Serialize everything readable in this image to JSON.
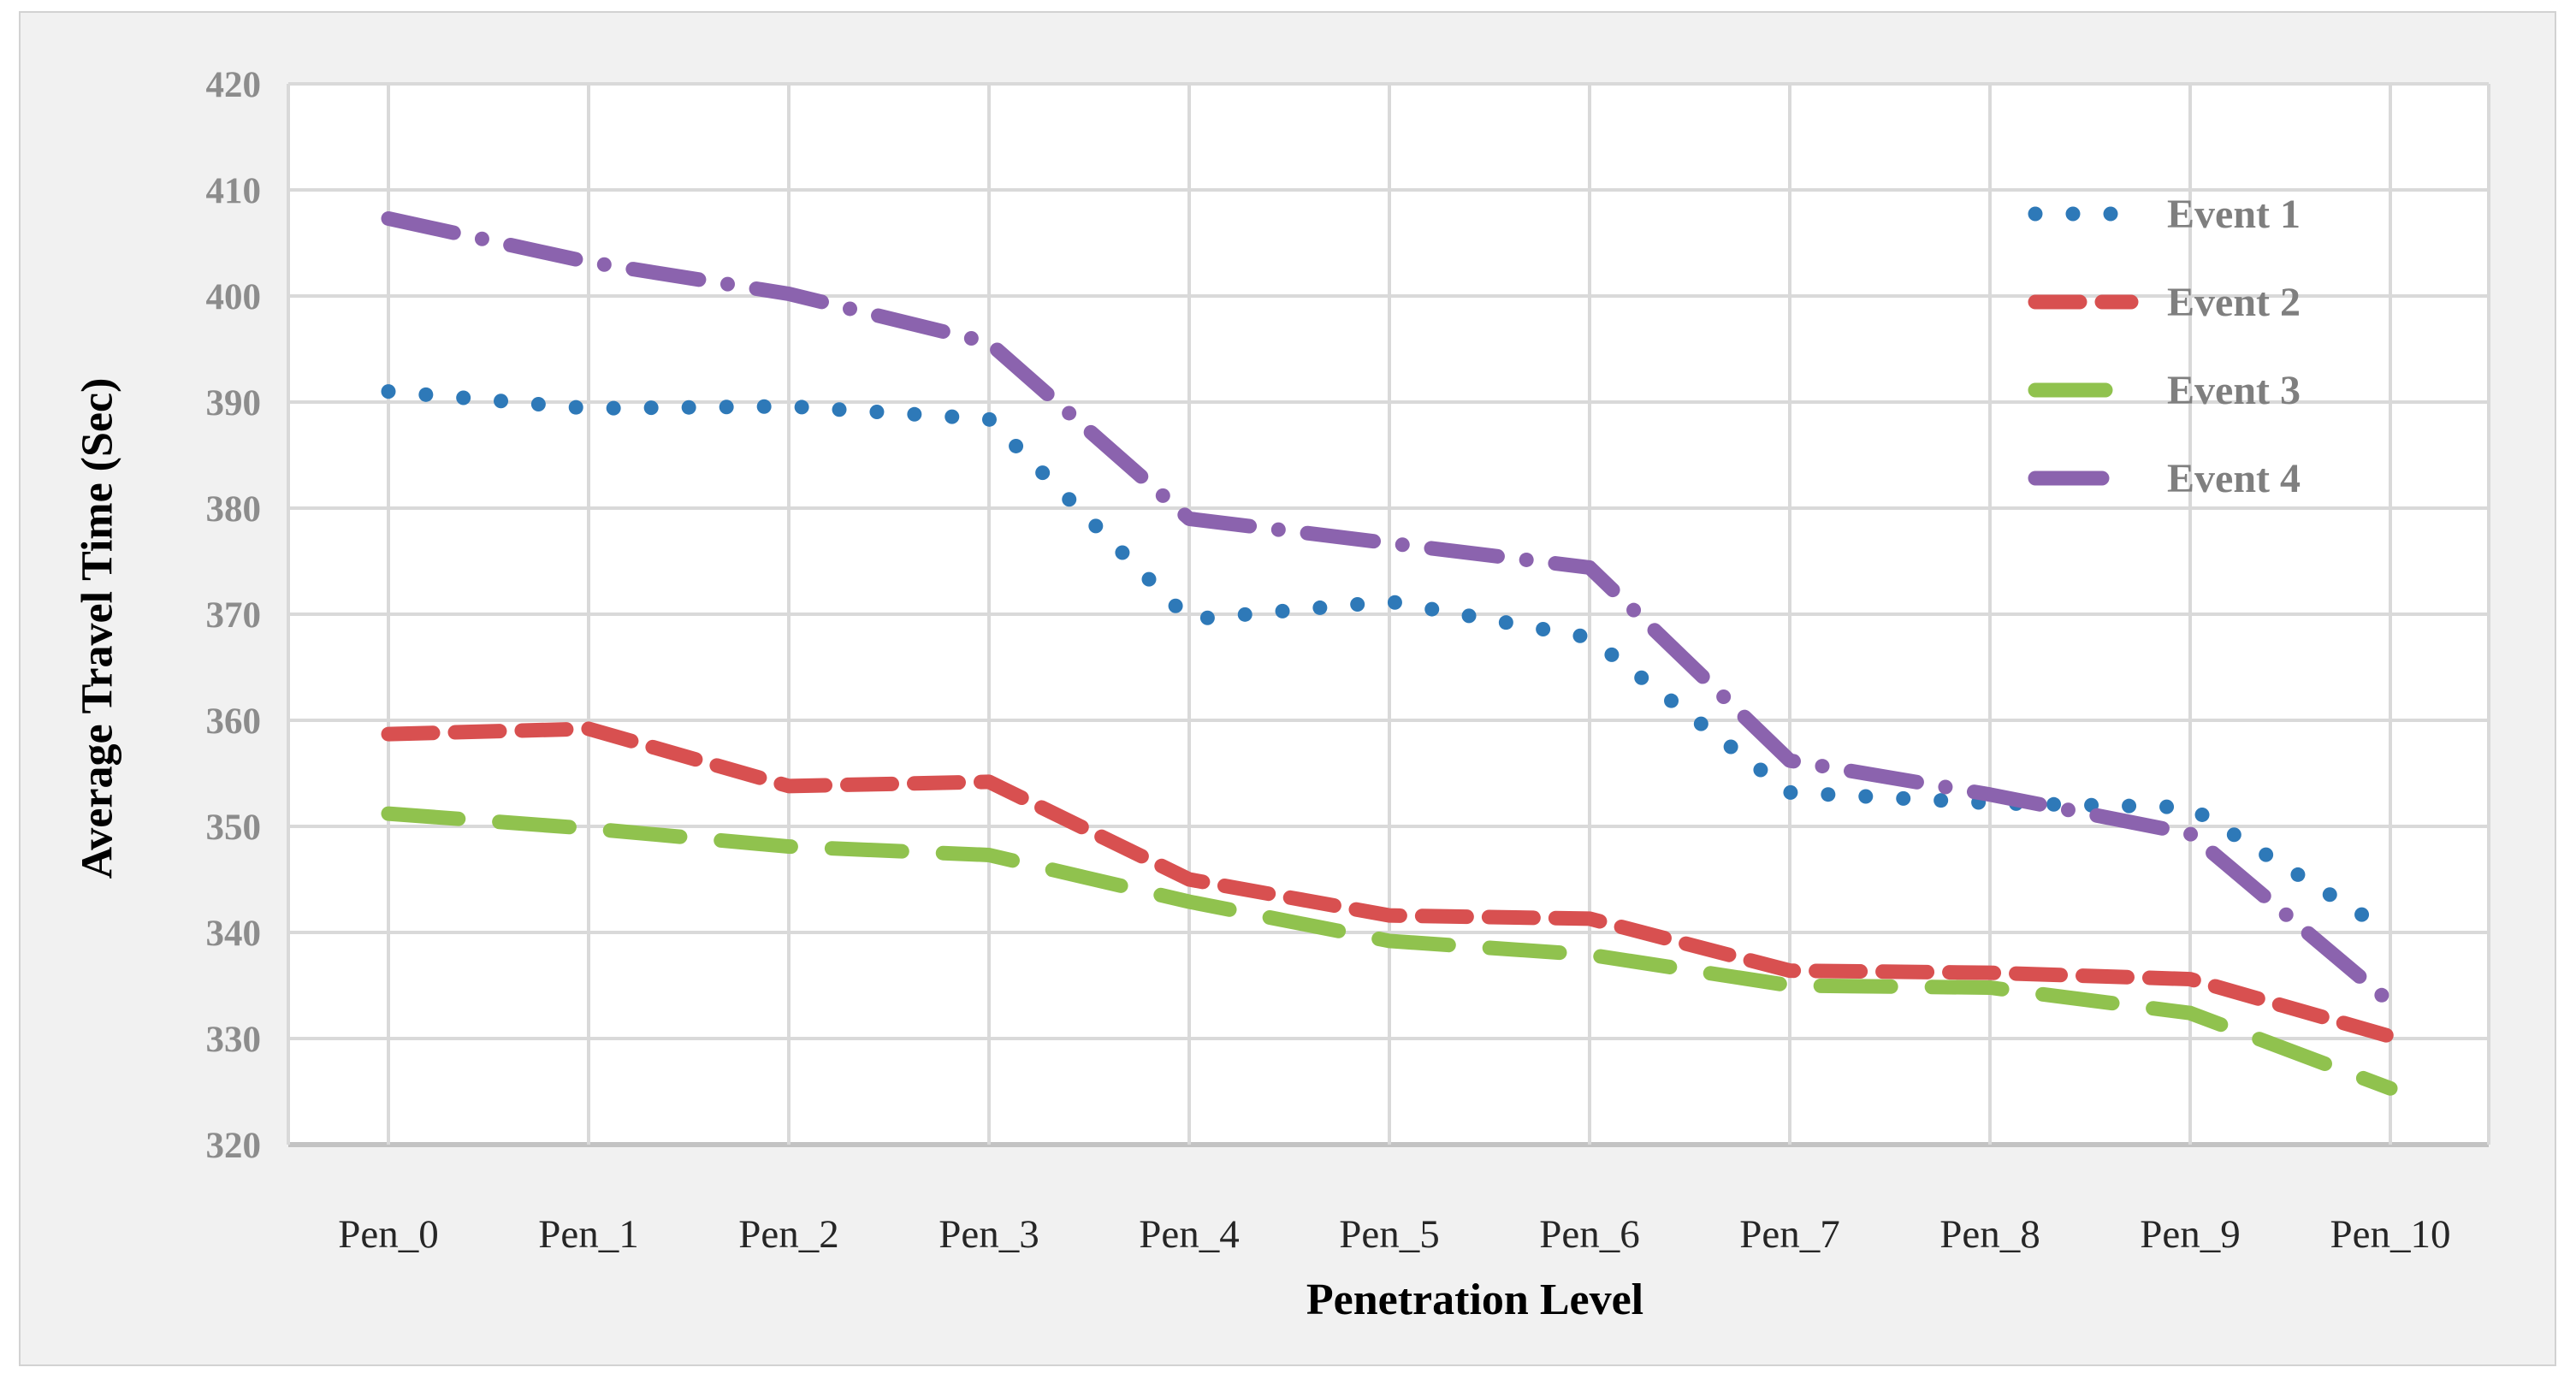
{
  "figure": {
    "background": "#f1f1f1",
    "plot_background": "#ffffff",
    "gridline_color": "#d9d9d9",
    "axis_line_color": "#c3c3c3",
    "ytick_color": "#8c8c8c",
    "xtick_color": "#262626"
  },
  "chart_data": {
    "type": "line",
    "title": "",
    "xlabel": "Penetration Level",
    "ylabel": "Average Travel Time (Sec)",
    "categories": [
      "Pen_0",
      "Pen_1",
      "Pen_2",
      "Pen_3",
      "Pen_4",
      "Pen_5",
      "Pen_6",
      "Pen_7",
      "Pen_8",
      "Pen_9",
      "Pen_10"
    ],
    "ylim": [
      320,
      420
    ],
    "ytick_step": 10,
    "grid": true,
    "legend_position": "top-right-inside",
    "series": [
      {
        "name": "Event 1",
        "color": "#2e79b8",
        "style": "dotted",
        "values": [
          391.0,
          389.4,
          389.6,
          388.4,
          369.5,
          371.2,
          367.8,
          353.2,
          352.2,
          351.8,
          340.0
        ]
      },
      {
        "name": "Event 2",
        "color": "#d85050",
        "style": "dashed",
        "values": [
          358.7,
          359.2,
          353.8,
          354.2,
          345.0,
          341.6,
          341.3,
          336.4,
          336.2,
          335.6,
          330.2
        ]
      },
      {
        "name": "Event 3",
        "color": "#90c24e",
        "style": "long-dashed",
        "values": [
          351.2,
          349.8,
          348.1,
          347.3,
          342.9,
          339.2,
          337.9,
          335.0,
          334.8,
          332.4,
          325.3
        ]
      },
      {
        "name": "Event 4",
        "color": "#8b63ae",
        "style": "dash-dot",
        "values": [
          407.3,
          403.2,
          400.2,
          395.6,
          379.0,
          376.7,
          374.4,
          356.2,
          353.0,
          349.3,
          333.4
        ]
      }
    ]
  }
}
